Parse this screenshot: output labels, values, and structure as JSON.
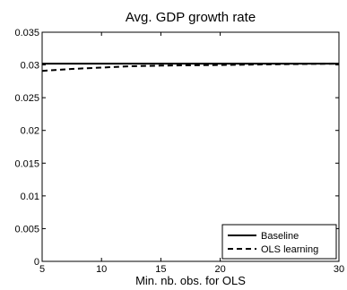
{
  "chart_data": {
    "type": "line",
    "title": "Avg. GDP growth rate",
    "xlabel": "Min. nb. obs. for OLS",
    "ylabel": "",
    "xlim": [
      5,
      30
    ],
    "ylim": [
      0,
      0.035
    ],
    "xticks": [
      5,
      10,
      15,
      20,
      30
    ],
    "xtick_labels": [
      "5",
      "10",
      "15",
      "20",
      "30"
    ],
    "yticks": [
      0,
      0.005,
      0.01,
      0.015,
      0.02,
      0.025,
      0.03,
      0.035
    ],
    "ytick_labels": [
      "0",
      "0.005",
      "0.01",
      "0.015",
      "0.02",
      "0.025",
      "0.03",
      "0.035"
    ],
    "grid": false,
    "legend_position": "bottom-right",
    "series": [
      {
        "name": "Baseline",
        "style": "solid",
        "color": "#000000",
        "x": [
          5,
          10,
          15,
          20,
          25,
          30
        ],
        "y": [
          0.0302,
          0.0302,
          0.0302,
          0.0302,
          0.0302,
          0.0302
        ]
      },
      {
        "name": "OLS learning",
        "style": "dashed",
        "color": "#000000",
        "x": [
          5,
          7.5,
          10,
          12.5,
          15,
          20,
          25,
          30
        ],
        "y": [
          0.0291,
          0.0294,
          0.0296,
          0.0298,
          0.0299,
          0.03,
          0.0301,
          0.0302
        ]
      }
    ]
  }
}
